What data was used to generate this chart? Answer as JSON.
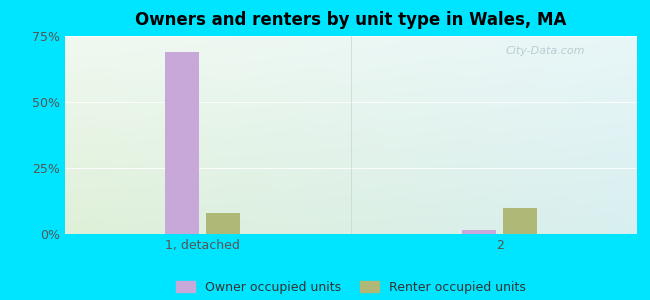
{
  "title": "Owners and renters by unit type in Wales, MA",
  "categories": [
    "1, detached",
    "2"
  ],
  "owner_values": [
    69.0,
    1.5
  ],
  "renter_values": [
    8.0,
    10.0
  ],
  "owner_color": "#c8a8d8",
  "renter_color": "#b0b878",
  "ylim": [
    0,
    75
  ],
  "yticks": [
    0,
    25,
    50,
    75
  ],
  "ytick_labels": [
    "0%",
    "25%",
    "50%",
    "75%"
  ],
  "legend_owner": "Owner occupied units",
  "legend_renter": "Renter occupied units",
  "outer_color": "#00e5ff",
  "watermark": "City-Data.com",
  "bar_width": 0.3,
  "group_positions": [
    1.2,
    3.8
  ],
  "xlim": [
    0.0,
    5.0
  ],
  "grid_color": "#e0ebe0",
  "divider_color": "#cccccc"
}
